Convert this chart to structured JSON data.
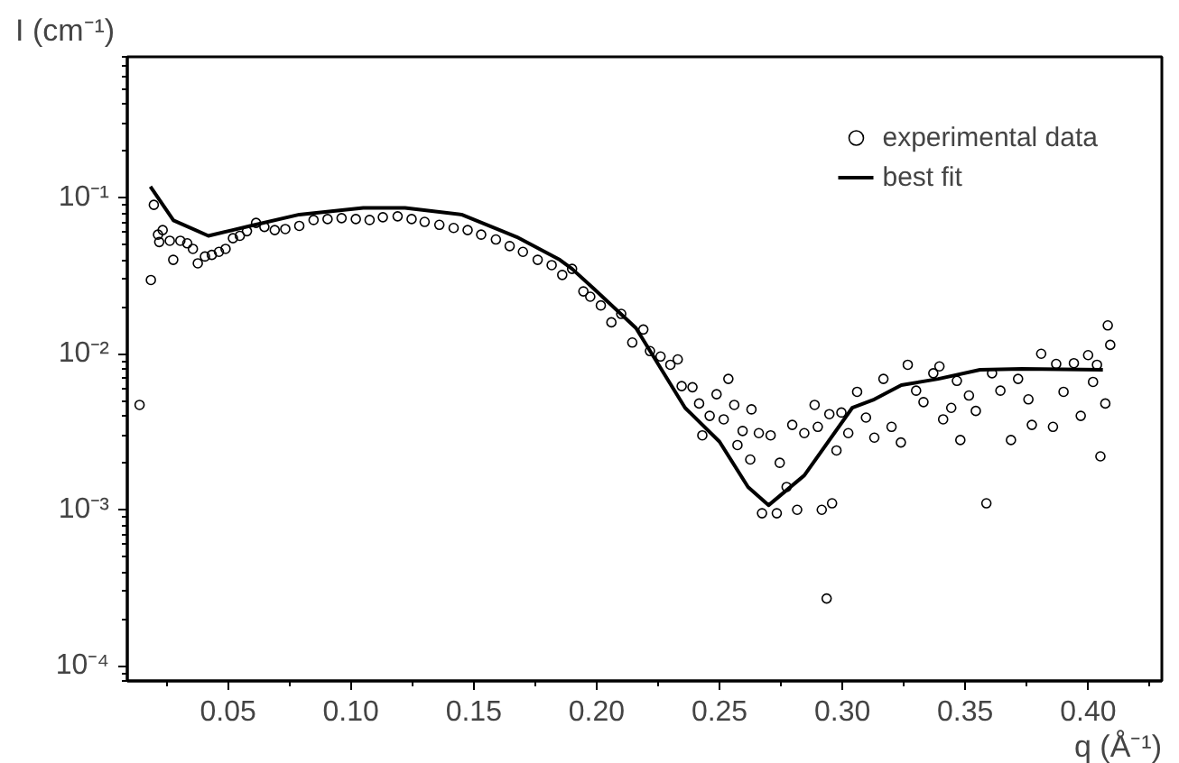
{
  "chart_data": {
    "type": "scatter",
    "xlabel": "q (Å⁻¹)",
    "ylabel": "I (cm⁻¹)",
    "log": "y",
    "xlim": [
      0.009,
      0.43
    ],
    "ylim": [
      8e-05,
      0.8
    ],
    "xticks": [
      0.05,
      {
        "value": 0.1,
        "label": "0.10"
      },
      0.15,
      {
        "value": 0.2,
        "label": "0.20"
      },
      0.25,
      {
        "value": 0.3,
        "label": "0.30"
      },
      0.35,
      {
        "value": 0.4,
        "label": "0.40"
      }
    ],
    "yticks": [
      {
        "value": 0.0001,
        "label": "10⁻⁴"
      },
      {
        "value": 0.001,
        "label": "10⁻³"
      },
      {
        "value": 0.01,
        "label": "10⁻²"
      },
      {
        "value": 0.1,
        "label": "10⁻¹"
      }
    ],
    "grid": false,
    "legend": "top right",
    "series": [
      {
        "name": "experimental data",
        "marker": "circle",
        "color": "#000000",
        "x": [
          0.014,
          0.0186,
          0.0198,
          0.0215,
          0.0234,
          0.022,
          0.0263,
          0.0277,
          0.0306,
          0.0334,
          0.0357,
          0.0377,
          0.0406,
          0.0434,
          0.0463,
          0.049,
          0.052,
          0.0548,
          0.0577,
          0.0614,
          0.0648,
          0.069,
          0.0733,
          0.079,
          0.0848,
          0.0905,
          0.0962,
          0.102,
          0.1076,
          0.113,
          0.119,
          0.1247,
          0.13,
          0.136,
          0.1418,
          0.1475,
          0.153,
          0.159,
          0.1646,
          0.17,
          0.176,
          0.1817,
          0.186,
          0.19,
          0.1946,
          0.1974,
          0.2017,
          0.206,
          0.21,
          0.2145,
          0.219,
          0.2217,
          0.226,
          0.23,
          0.233,
          0.2346,
          0.239,
          0.2417,
          0.243,
          0.246,
          0.2488,
          0.2517,
          0.2536,
          0.256,
          0.2573,
          0.2594,
          0.263,
          0.2625,
          0.266,
          0.2673,
          0.2708,
          0.2733,
          0.2745,
          0.2773,
          0.2796,
          0.2816,
          0.2845,
          0.2887,
          0.2916,
          0.29,
          0.2958,
          0.2936,
          0.2947,
          0.2976,
          0.2996,
          0.3024,
          0.306,
          0.3096,
          0.313,
          0.3167,
          0.32,
          0.3238,
          0.3266,
          0.33,
          0.333,
          0.337,
          0.3395,
          0.341,
          0.3443,
          0.3466,
          0.348,
          0.3515,
          0.3543,
          0.3586,
          0.3609,
          0.3643,
          0.3686,
          0.3715,
          0.3757,
          0.3771,
          0.3809,
          0.3857,
          0.387,
          0.39,
          0.3942,
          0.397,
          0.4,
          0.402,
          0.4036,
          0.405,
          0.407,
          0.408,
          0.409
        ],
        "values": [
          0.0047,
          0.0297,
          0.09,
          0.058,
          0.062,
          0.052,
          0.053,
          0.04,
          0.053,
          0.051,
          0.047,
          0.038,
          0.042,
          0.043,
          0.045,
          0.047,
          0.055,
          0.057,
          0.061,
          0.069,
          0.065,
          0.062,
          0.063,
          0.066,
          0.072,
          0.073,
          0.074,
          0.073,
          0.072,
          0.075,
          0.076,
          0.073,
          0.07,
          0.067,
          0.064,
          0.062,
          0.058,
          0.054,
          0.049,
          0.045,
          0.04,
          0.037,
          0.032,
          0.035,
          0.0251,
          0.0232,
          0.0204,
          0.0159,
          0.018,
          0.0118,
          0.0143,
          0.0104,
          0.0096,
          0.0085,
          0.0092,
          0.0062,
          0.0061,
          0.0048,
          0.003,
          0.004,
          0.0055,
          0.0038,
          0.0069,
          0.0047,
          0.0026,
          0.0032,
          0.0044,
          0.0021,
          0.0031,
          0.00095,
          0.003,
          0.00095,
          0.002,
          0.0014,
          0.0035,
          0.001,
          0.0031,
          0.0047,
          0.001,
          0.0034,
          0.0011,
          0.00027,
          0.0041,
          0.0024,
          0.0042,
          0.0031,
          0.0057,
          0.0039,
          0.0029,
          0.0069,
          0.0034,
          0.0027,
          0.0085,
          0.0058,
          0.0049,
          0.0075,
          0.0083,
          0.0038,
          0.0045,
          0.0067,
          0.0028,
          0.0054,
          0.0043,
          0.0011,
          0.0075,
          0.0058,
          0.0028,
          0.0069,
          0.0051,
          0.0035,
          0.01,
          0.0034,
          0.0086,
          0.0057,
          0.0087,
          0.004,
          0.0098,
          0.0066,
          0.0085,
          0.0022,
          0.0048,
          0.0152,
          0.0114
        ]
      },
      {
        "name": "best fit",
        "type": "line",
        "line_style": "solid",
        "color": "#000000",
        "x": [
          0.0184,
          0.0278,
          0.042,
          0.059,
          0.079,
          0.105,
          0.122,
          0.145,
          0.1675,
          0.185,
          0.19,
          0.199,
          0.216,
          0.236,
          0.25,
          0.2616,
          0.27,
          0.2845,
          0.304,
          0.313,
          0.324,
          0.339,
          0.356,
          0.373,
          0.406
        ],
        "values": [
          0.118,
          0.0716,
          0.057,
          0.066,
          0.078,
          0.086,
          0.086,
          0.078,
          0.056,
          0.04,
          0.035,
          0.026,
          0.0146,
          0.0045,
          0.00273,
          0.0014,
          0.00107,
          0.00166,
          0.0045,
          0.0051,
          0.0063,
          0.0069,
          0.0079,
          0.008,
          0.0079
        ]
      }
    ]
  }
}
